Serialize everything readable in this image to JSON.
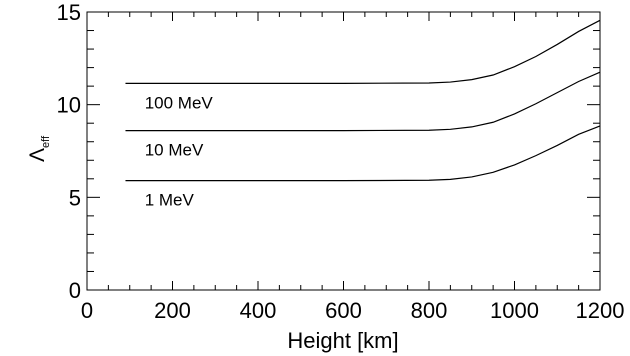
{
  "chart_data": {
    "type": "line",
    "xlabel": "Height [km]",
    "ylabel": {
      "base": "Λ",
      "sub": "eff"
    },
    "xlim": [
      0,
      1200
    ],
    "ylim": [
      0,
      15
    ],
    "xticks_major": [
      0,
      200,
      400,
      600,
      800,
      1000,
      1200
    ],
    "yticks_major": [
      0,
      5,
      10,
      15
    ],
    "xtick_labels": [
      "0",
      "200",
      "400",
      "600",
      "800",
      "1000",
      "1200"
    ],
    "ytick_labels": [
      "0",
      "5",
      "10",
      "15"
    ],
    "grid": false,
    "series": [
      {
        "name": "100 MeV",
        "x": [
          90,
          200,
          400,
          600,
          800,
          850,
          900,
          950,
          1000,
          1050,
          1100,
          1150,
          1200
        ],
        "y": [
          11.15,
          11.15,
          11.15,
          11.15,
          11.17,
          11.22,
          11.35,
          11.6,
          12.05,
          12.6,
          13.25,
          13.95,
          14.55
        ]
      },
      {
        "name": "10 MeV",
        "x": [
          90,
          200,
          400,
          600,
          800,
          850,
          900,
          950,
          1000,
          1050,
          1100,
          1150,
          1200
        ],
        "y": [
          8.6,
          8.6,
          8.6,
          8.6,
          8.62,
          8.67,
          8.8,
          9.05,
          9.5,
          10.05,
          10.65,
          11.25,
          11.75
        ]
      },
      {
        "name": "1 MeV",
        "x": [
          90,
          200,
          400,
          600,
          800,
          850,
          900,
          950,
          1000,
          1050,
          1100,
          1150,
          1200
        ],
        "y": [
          5.9,
          5.9,
          5.9,
          5.9,
          5.92,
          5.97,
          6.1,
          6.35,
          6.75,
          7.25,
          7.8,
          8.4,
          8.85
        ]
      }
    ]
  }
}
